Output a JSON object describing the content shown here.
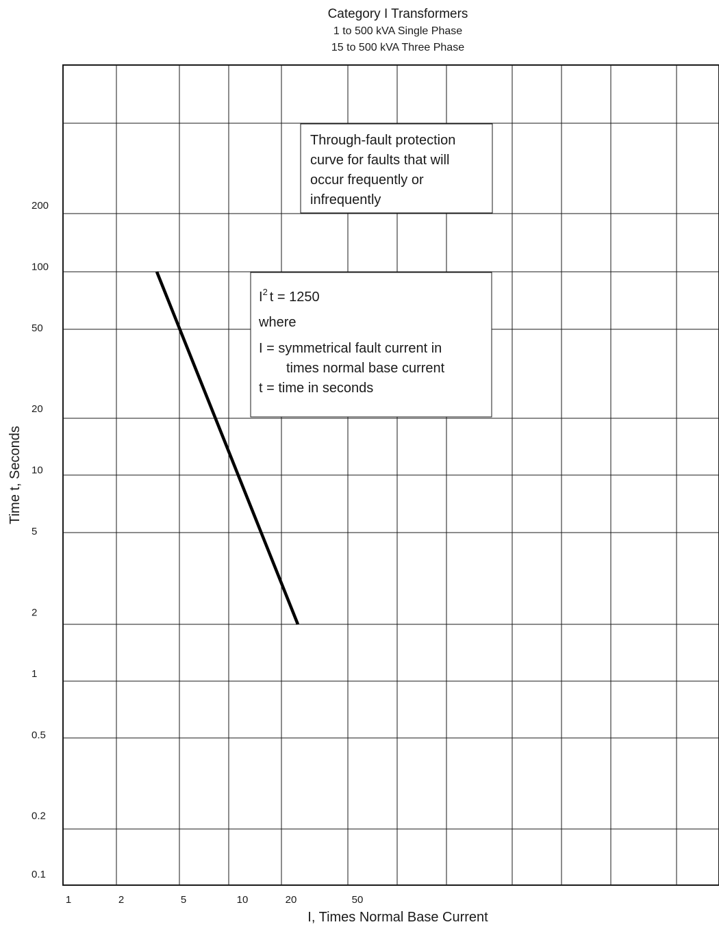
{
  "chart_data": {
    "type": "line",
    "title": "Category I Transformers",
    "subtitle": [
      "1 to 500 kVA Single Phase",
      "15 to 500 kVA Three Phase"
    ],
    "xlabel": "I, Times Normal Base Current",
    "ylabel": "Time t, Seconds",
    "x_scale": "log",
    "y_scale": "log",
    "xlim": [
      1,
      50
    ],
    "ylim": [
      0.1,
      200
    ],
    "x_ticks": [
      {
        "value": 1,
        "label": "1"
      },
      {
        "value": 2,
        "label": "2"
      },
      {
        "value": 5,
        "label": "5"
      },
      {
        "value": 10,
        "label": "10"
      },
      {
        "value": 20,
        "label": "20"
      },
      {
        "value": 50,
        "label": "50"
      }
    ],
    "y_ticks": [
      {
        "value": 0.1,
        "label": "0.1"
      },
      {
        "value": 0.2,
        "label": "0.2"
      },
      {
        "value": 0.5,
        "label": "0.5"
      },
      {
        "value": 1,
        "label": "1"
      },
      {
        "value": 2,
        "label": "2"
      },
      {
        "value": 5,
        "label": "5"
      },
      {
        "value": 10,
        "label": "10"
      },
      {
        "value": 20,
        "label": "20"
      },
      {
        "value": 50,
        "label": "50"
      },
      {
        "value": 100,
        "label": "100"
      },
      {
        "value": 200,
        "label": "200"
      }
    ],
    "grid": true,
    "series": [
      {
        "x": [
          3.5,
          25
        ],
        "y": [
          100,
          2
        ]
      }
    ],
    "annotations": [
      {
        "id": "protection-note",
        "lines": [
          "Through-fault protection",
          "curve for faults that will",
          "occur frequently or",
          "infrequently"
        ]
      },
      {
        "id": "formula-note",
        "formula": {
          "base": "I",
          "exp": "2",
          "rest": "t = 1250"
        },
        "lines": [
          "where",
          "I = symmetrical fault current in",
          "times normal base current",
          "t = time in seconds"
        ]
      }
    ]
  }
}
